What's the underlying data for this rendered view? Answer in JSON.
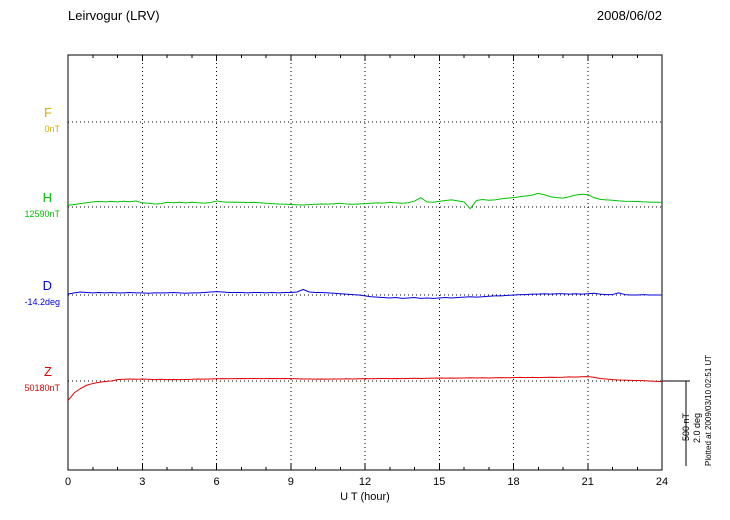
{
  "chart_data": {
    "type": "line",
    "title": "Leirvogur (LRV)",
    "date": "2008/06/02",
    "xlabel": "U T (hour)",
    "x_range": [
      0,
      24
    ],
    "x_ticks": [
      0,
      3,
      6,
      9,
      12,
      15,
      18,
      21,
      24
    ],
    "x_step_hours": 0.25,
    "grid": "dotted vertical lines every 3 hours; dotted horizontal baseline per channel",
    "legend_position": "left-of-plot channel labels",
    "scale_bar": {
      "nT": "500 nT",
      "deg": "2.0 deg",
      "nT_per_bar": 500,
      "deg_per_bar": 2.0
    },
    "footer_note": "Plotted at 2009/03/10 02:51 UT",
    "series": [
      {
        "id": "F",
        "label": "F",
        "value_label": "0nT",
        "unit": "nT",
        "color": "#DDAA00",
        "values": []
      },
      {
        "id": "H",
        "label": "H",
        "value_label": "12590nT",
        "unit": "nT",
        "color": "#00C300",
        "values": [
          10,
          15,
          20,
          25,
          30,
          32,
          30,
          33,
          30,
          34,
          31,
          35,
          25,
          22,
          18,
          20,
          27,
          25,
          28,
          24,
          28,
          25,
          23,
          26,
          35,
          30,
          28,
          29,
          28,
          26,
          27,
          25,
          22,
          20,
          18,
          17,
          15,
          13,
          12,
          14,
          16,
          18,
          17,
          19,
          22,
          18,
          16,
          18,
          20,
          22,
          24,
          23,
          27,
          24,
          22,
          25,
          35,
          55,
          30,
          28,
          33,
          38,
          42,
          36,
          30,
          -10,
          38,
          44,
          40,
          42,
          48,
          52,
          55,
          60,
          65,
          70,
          80,
          72,
          60,
          55,
          52,
          60,
          70,
          75,
          73,
          55,
          45,
          42,
          40,
          36,
          34,
          33,
          32,
          30,
          29,
          28,
          27
        ]
      },
      {
        "id": "D",
        "label": "D",
        "value_label": "-14.2deg",
        "unit": "deg",
        "color": "#0000E0",
        "values": [
          0.02,
          0.05,
          0.07,
          0.06,
          0.05,
          0.06,
          0.05,
          0.06,
          0.05,
          0.05,
          0.06,
          0.05,
          0.05,
          0.04,
          0.05,
          0.05,
          0.05,
          0.06,
          0.05,
          0.04,
          0.05,
          0.05,
          0.06,
          0.07,
          0.08,
          0.07,
          0.06,
          0.06,
          0.06,
          0.05,
          0.06,
          0.06,
          0.05,
          0.06,
          0.05,
          0.06,
          0.06,
          0.07,
          0.13,
          0.07,
          0.06,
          0.06,
          0.05,
          0.04,
          0.03,
          0.02,
          0.01,
          0.0,
          -0.02,
          -0.04,
          -0.05,
          -0.06,
          -0.07,
          -0.06,
          -0.08,
          -0.07,
          -0.06,
          -0.08,
          -0.07,
          -0.08,
          -0.07,
          -0.06,
          -0.07,
          -0.06,
          -0.05,
          -0.04,
          -0.05,
          -0.04,
          -0.03,
          -0.02,
          -0.02,
          -0.01,
          0.0,
          0.01,
          0.01,
          0.02,
          0.02,
          0.03,
          0.02,
          0.03,
          0.03,
          0.02,
          0.03,
          0.02,
          0.03,
          0.04,
          0.02,
          0.01,
          0.01,
          0.05,
          0.01,
          0.0,
          0.0,
          0.01,
          0.0,
          0.0,
          0.0
        ]
      },
      {
        "id": "Z",
        "label": "Z",
        "value_label": "50180nT",
        "unit": "nT",
        "color": "#E00000",
        "values": [
          -115,
          -70,
          -45,
          -25,
          -15,
          -8,
          -3,
          0,
          8,
          10,
          12,
          10,
          12,
          10,
          8,
          10,
          8,
          9,
          8,
          9,
          10,
          12,
          11,
          12,
          13,
          14,
          13,
          14,
          15,
          14,
          15,
          14,
          14,
          15,
          14,
          15,
          14,
          13,
          12,
          12,
          11,
          12,
          11,
          12,
          12,
          13,
          12,
          13,
          14,
          13,
          14,
          15,
          14,
          15,
          14,
          15,
          16,
          15,
          16,
          17,
          18,
          17,
          18,
          17,
          18,
          19,
          18,
          19,
          18,
          19,
          20,
          19,
          20,
          21,
          20,
          21,
          20,
          21,
          22,
          21,
          22,
          24,
          23,
          25,
          26,
          22,
          15,
          12,
          8,
          6,
          5,
          4,
          3,
          2,
          0,
          -2,
          -4
        ]
      }
    ]
  }
}
